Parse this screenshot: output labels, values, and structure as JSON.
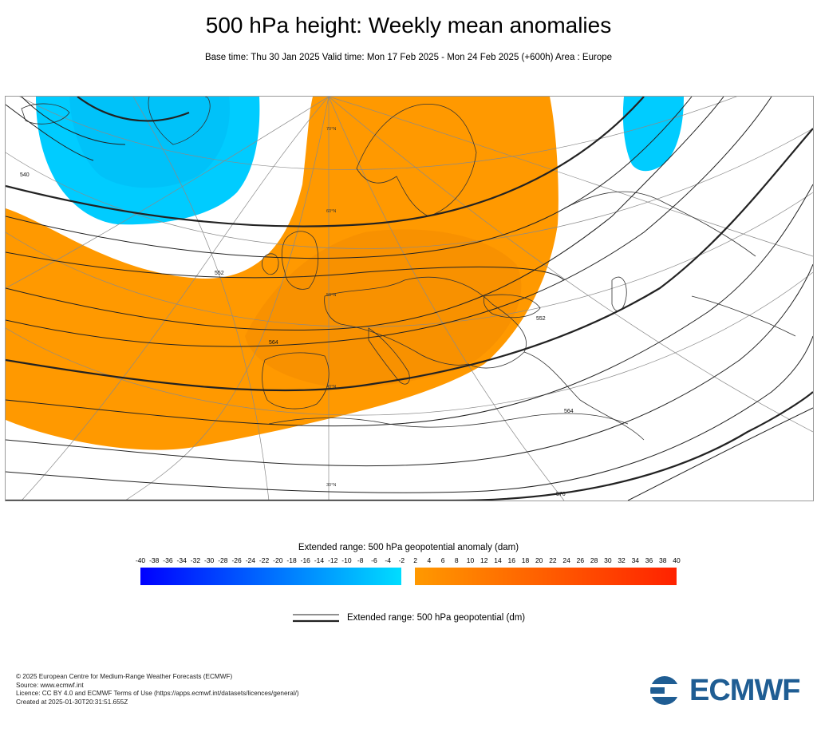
{
  "header": {
    "title": "500 hPa height: Weekly mean anomalies",
    "subtitle": "Base time: Thu 30 Jan 2025 Valid time: Mon 17 Feb 2025 - Mon 24 Feb 2025 (+600h) Area : Europe"
  },
  "map": {
    "region": "Europe",
    "contour_labels": {
      "c540": "540",
      "c552": "552",
      "c564": "564",
      "c576": "576"
    },
    "latitude_labels": {
      "lat70": "70°N",
      "lat60": "60°N",
      "lat50": "50°N",
      "lat40": "40°N",
      "lat30": "30°N"
    },
    "colors": {
      "positive_anomaly": "#ff9900",
      "negative_anomaly": "#00ccff",
      "contour": "#222222",
      "coastline": "#333333",
      "grid": "#8a8a8a"
    }
  },
  "colorbar": {
    "title": "Extended range: 500 hPa geopotential anomaly (dam)",
    "ticks": [
      "-40",
      "-38",
      "-36",
      "-34",
      "-32",
      "-30",
      "-28",
      "-26",
      "-24",
      "-22",
      "-20",
      "-18",
      "-16",
      "-14",
      "-12",
      "-10",
      "-8",
      "-6",
      "-4",
      "-2",
      "2",
      "4",
      "6",
      "8",
      "10",
      "12",
      "14",
      "16",
      "18",
      "20",
      "22",
      "24",
      "26",
      "28",
      "30",
      "32",
      "34",
      "36",
      "38",
      "40"
    ],
    "negative_from": "#0000ff",
    "negative_to": "#00ddff",
    "positive_from": "#ff9900",
    "positive_to": "#ff2200"
  },
  "legend": {
    "line_label": "Extended range: 500 hPa geopotential (dm)"
  },
  "footer": {
    "line1": "© 2025 European Centre for Medium-Range Weather Forecasts (ECMWF)",
    "line2": "Source: www.ecmwf.int",
    "line3": "Licence: CC BY 4.0 and ECMWF Terms of Use (https://apps.ecmwf.int/datasets/licences/general/)",
    "line4": "Created at 2025-01-30T20:31:51.655Z"
  },
  "logo": {
    "text": "ECMWF",
    "color": "#1f5d93"
  }
}
